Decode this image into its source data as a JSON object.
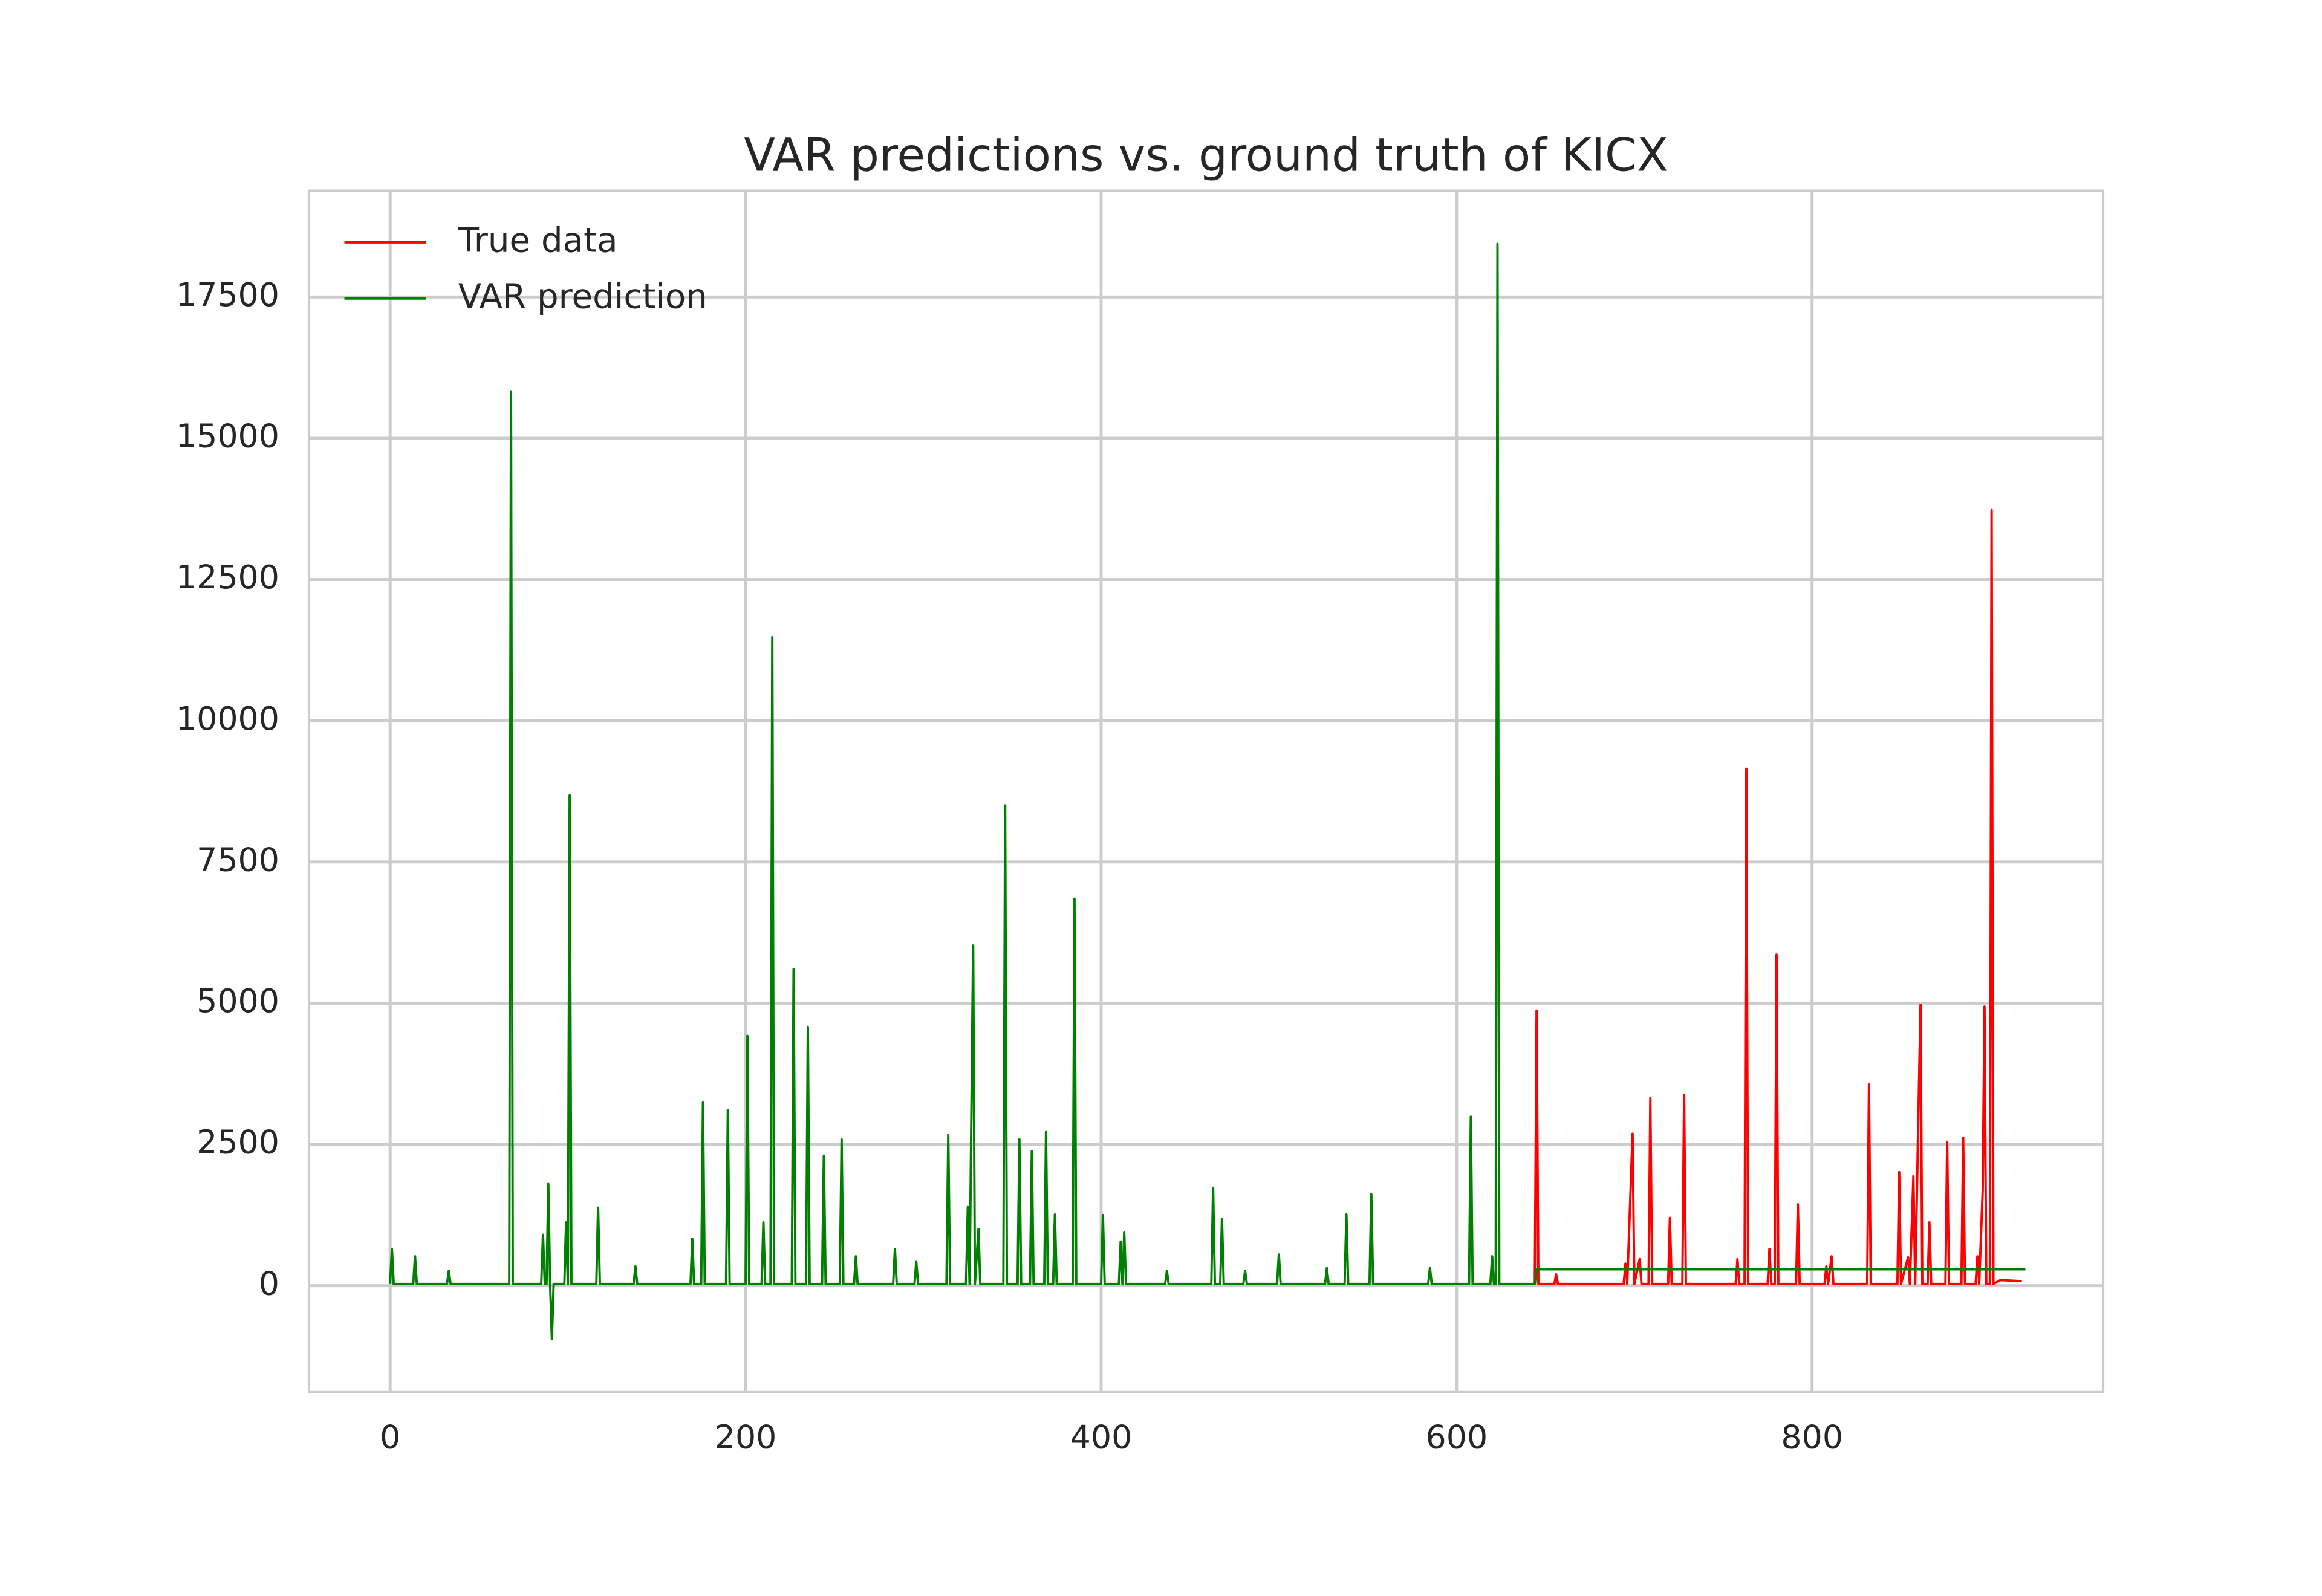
{
  "chart_data": {
    "type": "line",
    "title": "VAR predictions vs. ground truth of KICX",
    "xlim": [
      -45.7,
      963.8
    ],
    "ylim": [
      -1883,
      19383
    ],
    "xticks": [
      0,
      200,
      400,
      600,
      800
    ],
    "yticks": [
      0,
      2500,
      5000,
      7500,
      10000,
      12500,
      15000,
      17500
    ],
    "grid": true,
    "legend": "upper left",
    "series": [
      {
        "name": "True data",
        "color": "#ff0000",
        "x": [
          644,
          645,
          646,
          655,
          656,
          657,
          694,
          695,
          696,
          699,
          700,
          703,
          704,
          708,
          709,
          710,
          719,
          720,
          721,
          727,
          728,
          729,
          757,
          758,
          759,
          762,
          763,
          764,
          775,
          776,
          777,
          779,
          780,
          781,
          791,
          792,
          793,
          807,
          808,
          809,
          811,
          812,
          831,
          832,
          833,
          848,
          849,
          850,
          854,
          855,
          857,
          858,
          861,
          862,
          865,
          866,
          867,
          875,
          876,
          877,
          884,
          885,
          886,
          892,
          893,
          894,
          896,
          897,
          898,
          900,
          901,
          902,
          906,
          918
        ],
        "values": [
          30,
          4870,
          30,
          30,
          200,
          30,
          30,
          390,
          30,
          2690,
          30,
          470,
          30,
          30,
          3320,
          30,
          30,
          1200,
          30,
          30,
          3370,
          30,
          30,
          470,
          30,
          30,
          9150,
          30,
          30,
          650,
          30,
          30,
          5860,
          30,
          30,
          1440,
          30,
          30,
          340,
          30,
          520,
          30,
          30,
          3560,
          30,
          30,
          2010,
          30,
          500,
          30,
          1940,
          30,
          4970,
          30,
          30,
          1120,
          30,
          30,
          2540,
          30,
          30,
          2620,
          30,
          30,
          520,
          30,
          1700,
          4940,
          30,
          30,
          13730,
          30,
          100,
          80
        ]
      },
      {
        "name": "VAR prediction",
        "color": "#008000",
        "x": [
          0,
          1,
          2,
          13,
          14,
          15,
          32,
          33,
          34,
          67,
          68,
          69,
          85,
          86,
          87,
          88,
          89,
          90,
          91,
          92,
          98,
          99,
          100,
          101,
          102,
          116,
          117,
          118,
          137,
          138,
          139,
          169,
          170,
          171,
          175,
          176,
          177,
          189,
          190,
          191,
          200,
          201,
          202,
          209,
          210,
          211,
          214,
          215,
          216,
          226,
          227,
          228,
          234,
          235,
          236,
          243,
          244,
          245,
          253,
          254,
          255,
          261,
          262,
          263,
          283,
          284,
          285,
          295,
          296,
          297,
          313,
          314,
          315,
          324,
          325,
          326,
          328,
          329,
          331,
          332,
          345,
          346,
          347,
          353,
          354,
          355,
          360,
          361,
          362,
          368,
          369,
          370,
          373,
          374,
          375,
          384,
          385,
          386,
          400,
          401,
          402,
          410,
          411,
          412,
          413,
          414,
          436,
          437,
          438,
          462,
          463,
          464,
          467,
          468,
          469,
          480,
          481,
          482,
          499,
          500,
          501,
          526,
          527,
          528,
          537,
          538,
          539,
          551,
          552,
          553,
          584,
          585,
          586,
          607,
          608,
          609,
          619,
          620,
          621,
          622,
          623,
          624,
          644,
          645,
          920
        ],
        "values": [
          30,
          650,
          30,
          30,
          520,
          30,
          30,
          260,
          30,
          30,
          15830,
          30,
          30,
          900,
          30,
          30,
          1800,
          30,
          -940,
          30,
          30,
          1120,
          30,
          8680,
          30,
          30,
          1380,
          30,
          30,
          340,
          30,
          30,
          830,
          30,
          30,
          3240,
          30,
          30,
          3110,
          30,
          30,
          4420,
          30,
          30,
          1120,
          30,
          30,
          11480,
          30,
          30,
          5600,
          30,
          30,
          4580,
          30,
          30,
          2300,
          30,
          30,
          2590,
          30,
          30,
          520,
          30,
          30,
          650,
          30,
          30,
          420,
          30,
          30,
          2670,
          30,
          30,
          1390,
          30,
          6020,
          30,
          1000,
          30,
          30,
          8500,
          30,
          30,
          2590,
          30,
          30,
          2380,
          30,
          30,
          2720,
          30,
          30,
          1260,
          30,
          30,
          6850,
          30,
          30,
          1250,
          30,
          30,
          780,
          30,
          940,
          30,
          30,
          260,
          30,
          30,
          1730,
          30,
          30,
          1180,
          30,
          30,
          260,
          30,
          30,
          550,
          30,
          30,
          310,
          30,
          30,
          1260,
          30,
          30,
          1620,
          30,
          30,
          310,
          30,
          30,
          2990,
          30,
          30,
          520,
          30,
          30,
          18440,
          30,
          30,
          290,
          290
        ]
      }
    ]
  }
}
